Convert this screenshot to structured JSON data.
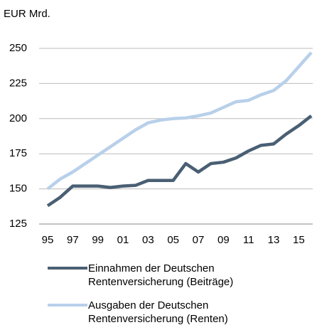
{
  "chart_data": {
    "type": "line",
    "y_label": "EUR Mrd.",
    "categories": [
      "95",
      null,
      "97",
      null,
      "99",
      null,
      "01",
      null,
      "03",
      null,
      "05",
      null,
      "07",
      null,
      "09",
      null,
      "11",
      null,
      "13",
      null,
      "15",
      null
    ],
    "series": [
      {
        "name": "Einnahmen der Deutschen Rentenversicherung (Beiträge)",
        "color": "#4a5f73",
        "values": [
          138,
          144,
          152,
          152,
          152,
          151,
          152,
          152.5,
          156,
          156,
          156,
          168,
          162,
          168,
          169,
          172,
          177,
          181,
          182,
          189,
          195,
          202
        ]
      },
      {
        "name": "Ausgaben der Deutschen Rentenversicherung (Renten)",
        "color": "#b8d0ea",
        "values": [
          150,
          157,
          162,
          168,
          174,
          180,
          186,
          192,
          197,
          199,
          200,
          200.5,
          202,
          204,
          208,
          212,
          213,
          217,
          220,
          227,
          237,
          247
        ]
      }
    ],
    "ylim": [
      125,
      250
    ],
    "yticks": [
      125,
      150,
      175,
      200,
      225,
      250
    ],
    "grid": true
  }
}
